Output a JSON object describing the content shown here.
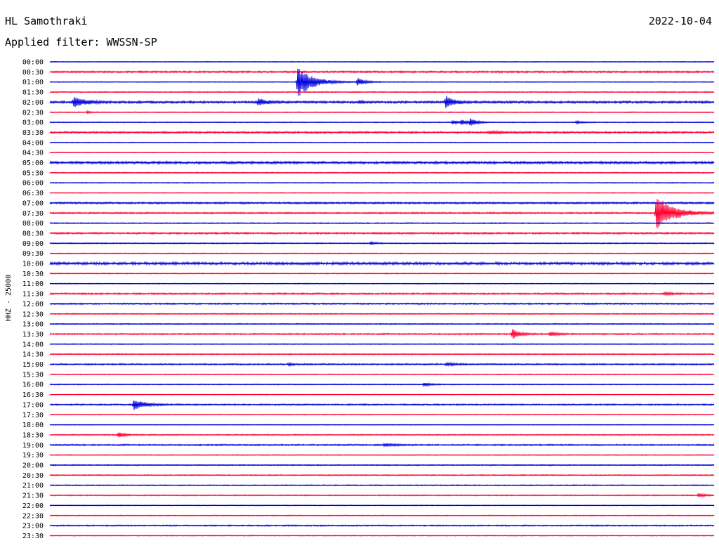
{
  "header": {
    "station": "HL Samothraki",
    "date": "2022-10-04",
    "filter": "Applied filter: WWSSN-SP"
  },
  "colors": {
    "blue": "#0000dd",
    "red": "#ff0033"
  },
  "chart_data": {
    "type": "line",
    "ylabel": "HHZ - 25000",
    "row_labels": [
      "00:00",
      "00:30",
      "01:00",
      "01:30",
      "02:00",
      "02:30",
      "03:00",
      "03:30",
      "04:00",
      "04:30",
      "05:00",
      "05:30",
      "06:00",
      "06:30",
      "07:00",
      "07:30",
      "08:00",
      "08:30",
      "09:00",
      "09:30",
      "10:00",
      "10:30",
      "11:00",
      "11:30",
      "12:00",
      "12:30",
      "13:00",
      "13:30",
      "14:00",
      "14:30",
      "15:00",
      "15:30",
      "16:00",
      "16:30",
      "17:00",
      "17:30",
      "18:00",
      "18:30",
      "19:00",
      "19:30",
      "20:00",
      "20:30",
      "21:00",
      "21:30",
      "22:00",
      "22:30",
      "23:00",
      "23:30"
    ],
    "row_colors": [
      "blue",
      "red"
    ],
    "trace_span_minutes": 30,
    "noise_levels": [
      0.4,
      1.0,
      0.4,
      0.6,
      1.2,
      0.5,
      0.5,
      1.0,
      0.4,
      0.4,
      1.3,
      0.6,
      0.5,
      0.4,
      1.0,
      0.8,
      0.6,
      1.0,
      0.6,
      0.5,
      1.4,
      0.5,
      0.5,
      0.9,
      0.8,
      0.6,
      0.6,
      0.8,
      0.5,
      0.6,
      0.8,
      0.5,
      0.5,
      0.4,
      0.8,
      0.4,
      0.4,
      0.6,
      0.8,
      0.4,
      0.6,
      0.6,
      0.6,
      0.6,
      0.4,
      0.5,
      0.7,
      0.5
    ],
    "events": [
      {
        "row": 2,
        "minute": 11.2,
        "amplitude": 22,
        "duration": 1.4
      },
      {
        "row": 2,
        "minute": 13.9,
        "amplitude": 5,
        "duration": 0.8
      },
      {
        "row": 4,
        "minute": 1.1,
        "amplitude": 8,
        "duration": 1.0
      },
      {
        "row": 4,
        "minute": 9.4,
        "amplitude": 5,
        "duration": 0.9
      },
      {
        "row": 4,
        "minute": 17.9,
        "amplitude": 9,
        "duration": 0.7
      },
      {
        "row": 4,
        "minute": 14.0,
        "amplitude": 1.5,
        "duration": 0.5
      },
      {
        "row": 5,
        "minute": 1.7,
        "amplitude": 2,
        "duration": 0.3
      },
      {
        "row": 6,
        "minute": 18.2,
        "amplitude": 3,
        "duration": 0.5
      },
      {
        "row": 6,
        "minute": 18.6,
        "amplitude": 4,
        "duration": 0.6
      },
      {
        "row": 6,
        "minute": 19.0,
        "amplitude": 6,
        "duration": 0.6
      },
      {
        "row": 6,
        "minute": 23.8,
        "amplitude": 2,
        "duration": 0.5
      },
      {
        "row": 7,
        "minute": 19.9,
        "amplitude": 2,
        "duration": 1.2
      },
      {
        "row": 15,
        "minute": 27.4,
        "amplitude": 25,
        "duration": 1.6
      },
      {
        "row": 18,
        "minute": 14.5,
        "amplitude": 2,
        "duration": 0.4
      },
      {
        "row": 23,
        "minute": 27.8,
        "amplitude": 2,
        "duration": 0.6
      },
      {
        "row": 27,
        "minute": 20.9,
        "amplitude": 7,
        "duration": 0.7
      },
      {
        "row": 27,
        "minute": 22.6,
        "amplitude": 3,
        "duration": 0.7
      },
      {
        "row": 30,
        "minute": 17.9,
        "amplitude": 2,
        "duration": 1.0
      },
      {
        "row": 30,
        "minute": 10.8,
        "amplitude": 1.5,
        "duration": 0.5
      },
      {
        "row": 32,
        "minute": 16.9,
        "amplitude": 3,
        "duration": 0.6
      },
      {
        "row": 34,
        "minute": 3.8,
        "amplitude": 8,
        "duration": 1.0
      },
      {
        "row": 37,
        "minute": 3.1,
        "amplitude": 4,
        "duration": 0.6
      },
      {
        "row": 38,
        "minute": 15.1,
        "amplitude": 2,
        "duration": 1.0
      },
      {
        "row": 43,
        "minute": 29.3,
        "amplitude": 3,
        "duration": 0.6
      }
    ]
  }
}
